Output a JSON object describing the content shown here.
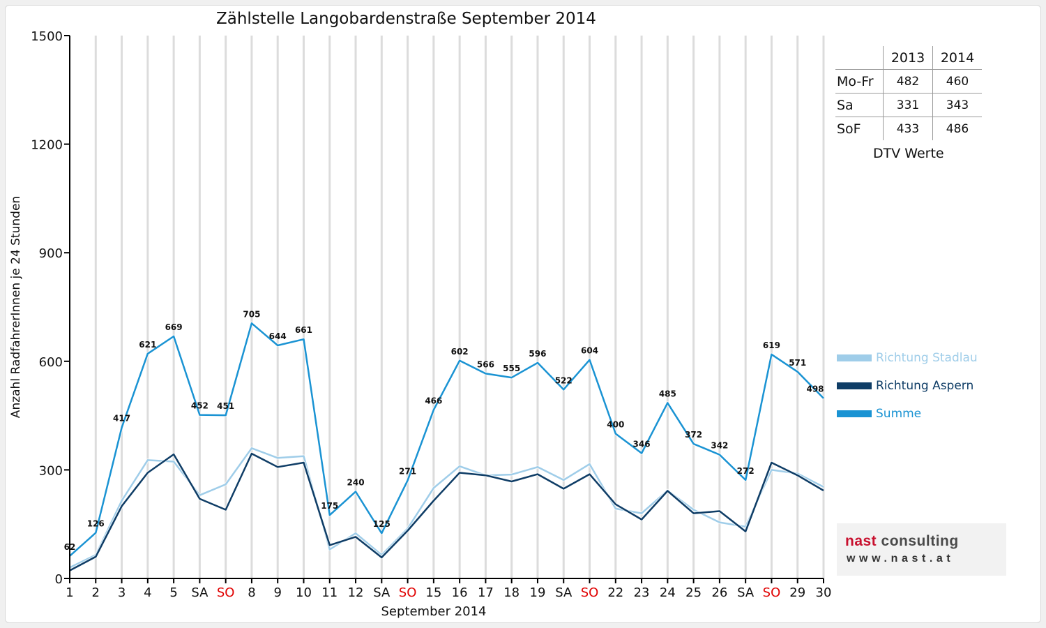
{
  "chart_data": {
    "type": "line",
    "title": "Zählstelle Langobardenstraße September 2014",
    "xlabel": "September 2014",
    "ylabel": "Anzahl RadfahrerInnen je 24 Stunden",
    "ylim": [
      0,
      1500
    ],
    "yticks": [
      "0",
      "300",
      "600",
      "900",
      "1200",
      "1500"
    ],
    "categories": [
      "1",
      "2",
      "3",
      "4",
      "5",
      "SA",
      "SO",
      "8",
      "9",
      "10",
      "11",
      "12",
      "SA",
      "SO",
      "15",
      "16",
      "17",
      "18",
      "19",
      "SA",
      "SO",
      "22",
      "23",
      "24",
      "25",
      "26",
      "SA",
      "SO",
      "29",
      "30"
    ],
    "weekend_label_colors": {
      "SO": "#e00000"
    },
    "grid": "vertical",
    "legend_position": "right",
    "series": [
      {
        "name": "Richtung Stadlau",
        "color": "#9fcde9",
        "values": [
          30,
          65,
          215,
          327,
          323,
          230,
          260,
          360,
          333,
          338,
          80,
          125,
          65,
          138,
          250,
          310,
          285,
          287,
          308,
          272,
          316,
          193,
          180,
          243,
          190,
          155,
          143,
          300,
          290,
          253
        ]
      },
      {
        "name": "Richtung Aspern",
        "color": "#0f3d66",
        "values": [
          22,
          60,
          200,
          292,
          343,
          220,
          190,
          345,
          308,
          320,
          92,
          115,
          58,
          132,
          215,
          292,
          285,
          268,
          288,
          248,
          288,
          205,
          163,
          242,
          180,
          186,
          130,
          320,
          285,
          243
        ]
      },
      {
        "name": "Summe",
        "color": "#1a93d3",
        "values": [
          62,
          126,
          417,
          621,
          669,
          452,
          451,
          705,
          644,
          661,
          175,
          240,
          125,
          271,
          466,
          602,
          566,
          555,
          596,
          522,
          604,
          400,
          346,
          485,
          372,
          342,
          272,
          619,
          571,
          498
        ],
        "data_labels": [
          "62",
          "126",
          "417",
          "621",
          "669",
          "452",
          "451",
          "705",
          "644",
          "661",
          "175",
          "240",
          "125",
          "271",
          "466",
          "602",
          "566",
          "555",
          "596",
          "522",
          "604",
          "400",
          "346",
          "485",
          "372",
          "342",
          "272",
          "619",
          "571",
          "498"
        ]
      }
    ]
  },
  "dtv_table": {
    "headers": [
      "",
      "2013",
      "2014"
    ],
    "rows": [
      {
        "label": "Mo-Fr",
        "v2013": "482",
        "v2014": "460"
      },
      {
        "label": "Sa",
        "v2013": "331",
        "v2014": "343"
      },
      {
        "label": "SoF",
        "v2013": "433",
        "v2014": "486"
      }
    ],
    "caption": "DTV Werte"
  },
  "logo": {
    "name_part1": "nast",
    "name_part2": " consulting",
    "url": "www.nast.at"
  }
}
